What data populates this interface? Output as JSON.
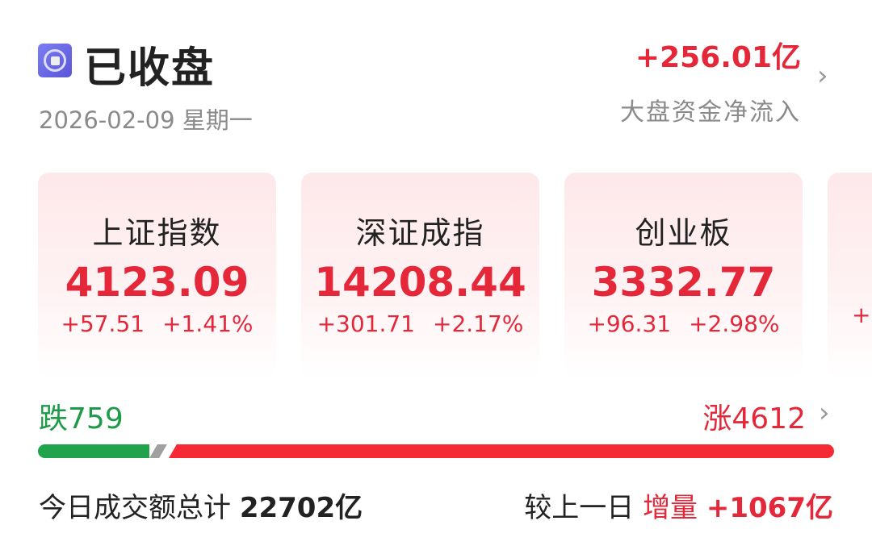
{
  "header": {
    "status_icon": "market-closed-icon",
    "title": "已收盘",
    "date": "2026-02-09 星期一",
    "net_inflow": "+256.01亿",
    "net_inflow_label": "大盘资金净流入"
  },
  "indices": [
    {
      "name": "上证指数",
      "value": "4123.09",
      "change": "+57.51",
      "pct": "+1.41%"
    },
    {
      "name": "深证成指",
      "value": "14208.44",
      "change": "+301.71",
      "pct": "+2.17%"
    },
    {
      "name": "创业板",
      "value": "3332.77",
      "change": "+96.31",
      "pct": "+2.98%"
    },
    {
      "name": "",
      "value": "",
      "change": "+",
      "pct": ""
    }
  ],
  "breadth": {
    "down_label": "跌",
    "down": "759",
    "up_label": "涨",
    "up": "4612"
  },
  "turnover": {
    "label": "今日成交额总计",
    "value": "22702亿",
    "compare_label": "较上一日",
    "delta_label": "增量",
    "delta": "+1067亿"
  },
  "colors": {
    "up": "#e4283a",
    "down": "#1e9b48",
    "flat": "#a0a0a0"
  }
}
